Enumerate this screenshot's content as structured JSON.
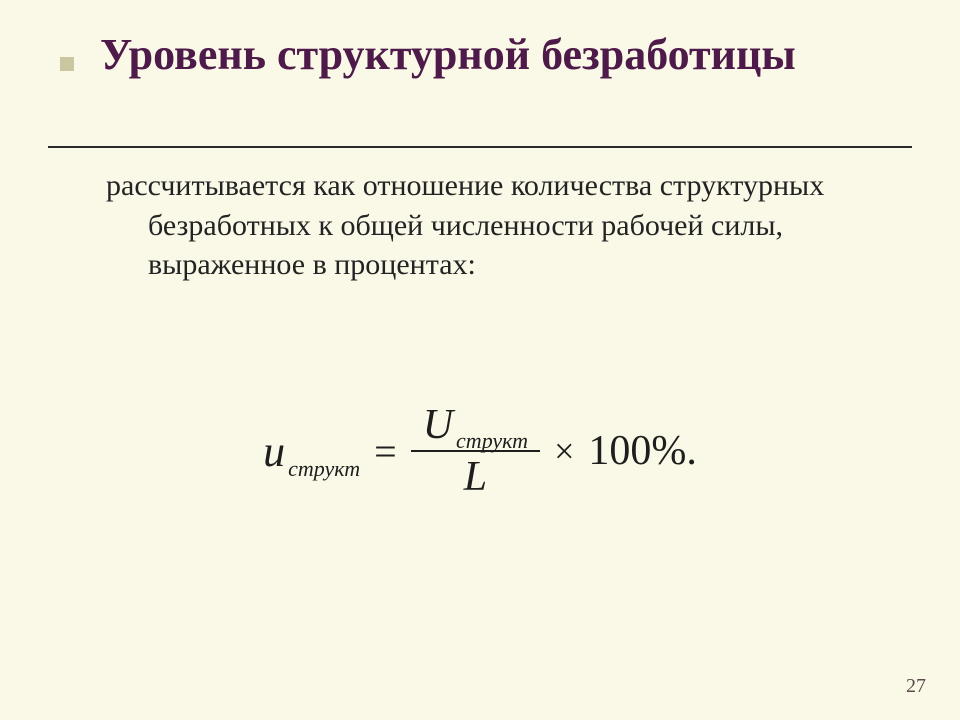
{
  "slide": {
    "background_color": "#faf9e8",
    "title_color": "#4e1a4a",
    "text_color": "#232323",
    "rule_color": "#2a2a2a",
    "bullet_color": "#c9c7a0",
    "title_fontsize": 44,
    "body_fontsize": 30
  },
  "title": "Уровень структурной безработицы",
  "body": "рассчитывается как отношение количества структурных безработных к общей численности рабочей силы, выраженное в процентах:",
  "formula": {
    "lhs_var": "u",
    "lhs_sub": "структ",
    "equals": "=",
    "num_var": "U",
    "num_sub": "структ",
    "den": "L",
    "times": "×",
    "percent": "100%."
  },
  "page_number": "27"
}
